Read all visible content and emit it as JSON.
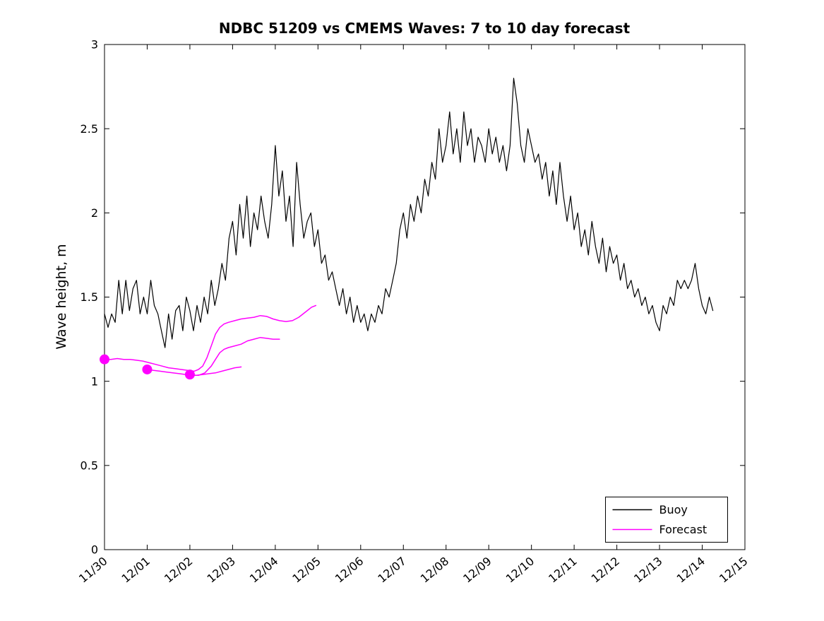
{
  "colors": {
    "buoy": "#000000",
    "forecast": "#ff00ff",
    "axes": "#000000",
    "background": "#ffffff"
  },
  "chart_data": {
    "type": "line",
    "title": "NDBC 51209 vs CMEMS Waves: 7 to 10 day forecast",
    "xlabel": "",
    "ylabel": "Wave height, m",
    "ylim": [
      0,
      3
    ],
    "xlim_days": [
      0,
      15
    ],
    "grid": false,
    "y_ticks": [
      0,
      0.5,
      1,
      1.5,
      2,
      2.5,
      3
    ],
    "y_tick_labels": [
      "0",
      "0.5",
      "1",
      "1.5",
      "2",
      "2.5",
      "3"
    ],
    "x_tick_positions_days": [
      0,
      1,
      2,
      3,
      4,
      5,
      6,
      7,
      8,
      9,
      10,
      11,
      12,
      13,
      14,
      15
    ],
    "x_tick_labels": [
      "11/30",
      "12/01",
      "12/02",
      "12/03",
      "12/04",
      "12/05",
      "12/06",
      "12/07",
      "12/08",
      "12/09",
      "12/10",
      "12/11",
      "12/12",
      "12/13",
      "12/14",
      "12/15"
    ],
    "x_tick_label_rotation_deg": 40,
    "legend": {
      "position": "southeast",
      "entries": [
        {
          "label": "Buoy",
          "color": "#000000"
        },
        {
          "label": "Forecast",
          "color": "#ff00ff"
        }
      ]
    },
    "series": [
      {
        "name": "Buoy",
        "color": "#000000",
        "line_width": 1.2,
        "x_start_day": 0,
        "dt_hours": 2,
        "values": [
          1.4,
          1.32,
          1.4,
          1.35,
          1.6,
          1.4,
          1.6,
          1.42,
          1.55,
          1.6,
          1.4,
          1.5,
          1.4,
          1.6,
          1.45,
          1.4,
          1.3,
          1.2,
          1.4,
          1.25,
          1.42,
          1.45,
          1.3,
          1.5,
          1.42,
          1.3,
          1.45,
          1.35,
          1.5,
          1.4,
          1.6,
          1.45,
          1.55,
          1.7,
          1.6,
          1.85,
          1.95,
          1.75,
          2.05,
          1.85,
          2.1,
          1.8,
          2.0,
          1.9,
          2.1,
          1.95,
          1.85,
          2.05,
          2.4,
          2.1,
          2.25,
          1.95,
          2.1,
          1.8,
          2.3,
          2.05,
          1.85,
          1.95,
          2.0,
          1.8,
          1.9,
          1.7,
          1.75,
          1.6,
          1.65,
          1.55,
          1.45,
          1.55,
          1.4,
          1.5,
          1.35,
          1.45,
          1.35,
          1.4,
          1.3,
          1.4,
          1.35,
          1.45,
          1.4,
          1.55,
          1.5,
          1.6,
          1.7,
          1.9,
          2.0,
          1.85,
          2.05,
          1.95,
          2.1,
          2.0,
          2.2,
          2.1,
          2.3,
          2.2,
          2.5,
          2.3,
          2.4,
          2.6,
          2.35,
          2.5,
          2.3,
          2.6,
          2.4,
          2.5,
          2.3,
          2.45,
          2.4,
          2.3,
          2.5,
          2.35,
          2.45,
          2.3,
          2.4,
          2.25,
          2.4,
          2.8,
          2.65,
          2.4,
          2.3,
          2.5,
          2.4,
          2.3,
          2.35,
          2.2,
          2.3,
          2.1,
          2.25,
          2.05,
          2.3,
          2.1,
          1.95,
          2.1,
          1.9,
          2.0,
          1.8,
          1.9,
          1.75,
          1.95,
          1.8,
          1.7,
          1.85,
          1.65,
          1.8,
          1.7,
          1.75,
          1.6,
          1.7,
          1.55,
          1.6,
          1.5,
          1.55,
          1.45,
          1.5,
          1.4,
          1.45,
          1.35,
          1.3,
          1.45,
          1.4,
          1.5,
          1.45,
          1.6,
          1.55,
          1.6,
          1.55,
          1.6,
          1.7,
          1.55,
          1.45,
          1.4,
          1.5,
          1.42
        ]
      },
      {
        "name": "Forecast init 11/30",
        "color": "#ff00ff",
        "line_width": 1.5,
        "points": [
          [
            0,
            1.13
          ],
          [
            0.15,
            1.13
          ],
          [
            0.3,
            1.135
          ],
          [
            0.45,
            1.13
          ],
          [
            0.6,
            1.13
          ],
          [
            0.75,
            1.125
          ],
          [
            0.9,
            1.12
          ],
          [
            1.05,
            1.11
          ],
          [
            1.2,
            1.1
          ],
          [
            1.35,
            1.09
          ],
          [
            1.5,
            1.08
          ],
          [
            1.65,
            1.075
          ],
          [
            1.8,
            1.07
          ],
          [
            1.95,
            1.065
          ],
          [
            2.1,
            1.06
          ],
          [
            2.2,
            1.07
          ],
          [
            2.3,
            1.09
          ],
          [
            2.4,
            1.14
          ],
          [
            2.5,
            1.21
          ],
          [
            2.6,
            1.28
          ],
          [
            2.7,
            1.32
          ],
          [
            2.8,
            1.34
          ],
          [
            2.9,
            1.35
          ],
          [
            3.05,
            1.36
          ],
          [
            3.2,
            1.37
          ],
          [
            3.35,
            1.375
          ],
          [
            3.5,
            1.38
          ],
          [
            3.65,
            1.39
          ],
          [
            3.8,
            1.385
          ],
          [
            3.95,
            1.37
          ],
          [
            4.1,
            1.36
          ],
          [
            4.25,
            1.355
          ],
          [
            4.4,
            1.36
          ],
          [
            4.55,
            1.38
          ],
          [
            4.7,
            1.41
          ],
          [
            4.85,
            1.44
          ],
          [
            4.95,
            1.45
          ]
        ]
      },
      {
        "name": "Forecast init 12/01",
        "color": "#ff00ff",
        "line_width": 1.5,
        "points": [
          [
            1,
            1.07
          ],
          [
            1.15,
            1.065
          ],
          [
            1.3,
            1.06
          ],
          [
            1.45,
            1.055
          ],
          [
            1.6,
            1.05
          ],
          [
            1.75,
            1.045
          ],
          [
            1.9,
            1.04
          ],
          [
            2.05,
            1.035
          ],
          [
            2.2,
            1.035
          ],
          [
            2.35,
            1.05
          ],
          [
            2.5,
            1.09
          ],
          [
            2.6,
            1.13
          ],
          [
            2.7,
            1.17
          ],
          [
            2.8,
            1.19
          ],
          [
            2.9,
            1.2
          ],
          [
            3.05,
            1.21
          ],
          [
            3.2,
            1.22
          ],
          [
            3.35,
            1.24
          ],
          [
            3.5,
            1.25
          ],
          [
            3.65,
            1.26
          ],
          [
            3.8,
            1.255
          ],
          [
            3.95,
            1.25
          ],
          [
            4.1,
            1.25
          ]
        ]
      },
      {
        "name": "Forecast init 12/02",
        "color": "#ff00ff",
        "line_width": 1.5,
        "points": [
          [
            2,
            1.04
          ],
          [
            2.15,
            1.035
          ],
          [
            2.3,
            1.04
          ],
          [
            2.45,
            1.045
          ],
          [
            2.6,
            1.05
          ],
          [
            2.75,
            1.06
          ],
          [
            2.9,
            1.07
          ],
          [
            3.05,
            1.08
          ],
          [
            3.2,
            1.085
          ]
        ]
      }
    ],
    "markers": {
      "name": "forecast-start-markers",
      "color": "#ff00ff",
      "radius_px": 7,
      "points": [
        [
          0,
          1.13
        ],
        [
          1,
          1.07
        ],
        [
          2,
          1.04
        ]
      ]
    }
  }
}
